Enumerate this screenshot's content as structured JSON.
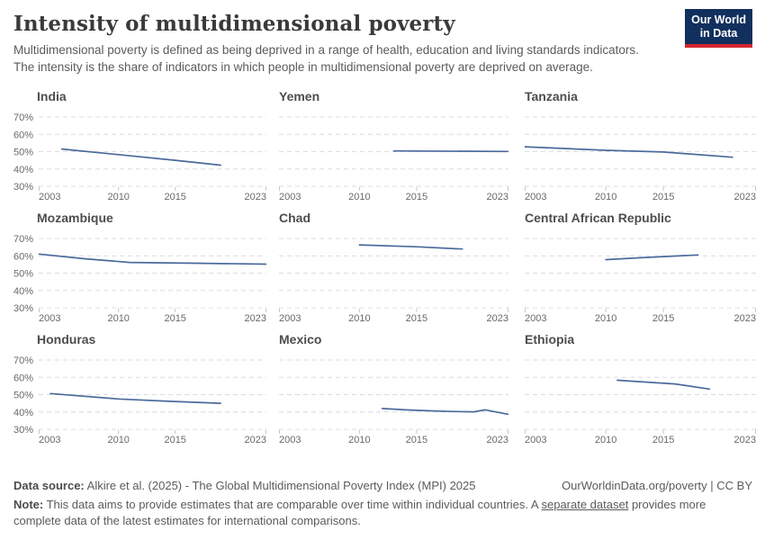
{
  "header": {
    "title": "Intensity of multidimensional poverty",
    "subtitle": "Multidimensional poverty is defined as being deprived in a range of health, education and living standards indicators. The intensity is the share of indicators in which people in multidimensional poverty are deprived on average.",
    "logo": {
      "line1": "Our World",
      "line2": "in Data",
      "bg_color": "#12305E",
      "accent_color": "#D4262E"
    }
  },
  "chart_data": {
    "type": "line",
    "layout": "3x3-small-multiples",
    "x_domain": [
      2003,
      2023
    ],
    "x_ticks": [
      2003,
      2010,
      2015,
      2023
    ],
    "y_ticks": [
      30,
      40,
      50,
      60,
      70
    ],
    "y_tick_suffix": "%",
    "ylim": [
      30,
      70
    ],
    "grid": "dashed-horizontal",
    "line_color": "#4C6A9C",
    "grid_color": "#dcdcdc",
    "tick_color": "#c8c8c8",
    "series": [
      {
        "name": "India",
        "points": [
          [
            2005,
            51.5
          ],
          [
            2010,
            48.3
          ],
          [
            2015,
            45.0
          ],
          [
            2019,
            42.2
          ]
        ]
      },
      {
        "name": "Yemen",
        "points": [
          [
            2013,
            50.4
          ],
          [
            2023,
            50.1
          ]
        ]
      },
      {
        "name": "Tanzania",
        "points": [
          [
            2003,
            52.8
          ],
          [
            2010,
            50.8
          ],
          [
            2015,
            49.8
          ],
          [
            2021,
            46.8
          ]
        ]
      },
      {
        "name": "Mozambique",
        "points": [
          [
            2003,
            61.0
          ],
          [
            2007,
            58.3
          ],
          [
            2011,
            56.2
          ],
          [
            2017,
            55.7
          ],
          [
            2023,
            55.2
          ]
        ]
      },
      {
        "name": "Chad",
        "points": [
          [
            2010,
            66.3
          ],
          [
            2015,
            65.2
          ],
          [
            2019,
            63.9
          ]
        ]
      },
      {
        "name": "Central African Republic",
        "points": [
          [
            2010,
            57.8
          ],
          [
            2013,
            58.9
          ],
          [
            2018,
            60.5
          ]
        ]
      },
      {
        "name": "Honduras",
        "points": [
          [
            2004,
            50.6
          ],
          [
            2010,
            47.5
          ],
          [
            2014,
            46.3
          ],
          [
            2019,
            45.0
          ]
        ]
      },
      {
        "name": "Mexico",
        "points": [
          [
            2012,
            42.0
          ],
          [
            2014,
            41.2
          ],
          [
            2016,
            40.7
          ],
          [
            2018,
            40.3
          ],
          [
            2020,
            40.1
          ],
          [
            2021,
            41.2
          ],
          [
            2023,
            38.7
          ]
        ]
      },
      {
        "name": "Ethiopia",
        "points": [
          [
            2011,
            58.3
          ],
          [
            2016,
            56.2
          ],
          [
            2019,
            53.2
          ]
        ]
      }
    ]
  },
  "footer": {
    "source_label": "Data source:",
    "source_text": " Alkire et al. (2025) - The Global Multidimensional Poverty Index (MPI) 2025",
    "attribution": "OurWorldinData.org/poverty | CC BY",
    "note_label": "Note:",
    "note_before_link": " This data aims to provide estimates that are comparable over time within individual countries. A ",
    "note_link": "separate dataset",
    "note_after_link": " provides more complete data of the latest estimates for international comparisons."
  }
}
